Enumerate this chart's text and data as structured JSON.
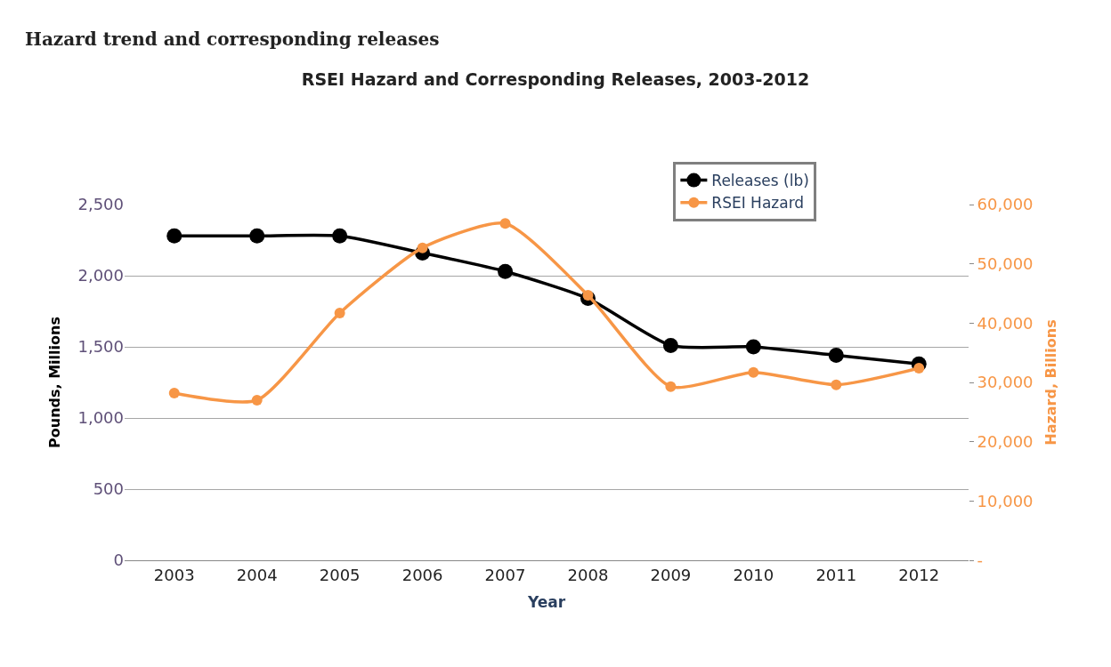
{
  "chart_data": {
    "type": "line",
    "title": "RSEI Hazard and Corresponding Releases, 2003-2012",
    "annotations": [
      "Hazard trend and corresponding releases"
    ],
    "categories": [
      "2003",
      "2004",
      "2005",
      "2006",
      "2007",
      "2008",
      "2009",
      "2010",
      "2011",
      "2012"
    ],
    "xlabel": "Year",
    "ylabel": "Pounds, Millions",
    "y2label": "Hazard, Billions",
    "series": [
      {
        "name": "Releases (lb)",
        "color": "#000000",
        "values": [
          2280,
          2280,
          2280,
          2160,
          2030,
          1840,
          1510,
          1500,
          1440,
          1380
        ]
      },
      {
        "name": "RSEI Hazard",
        "color": "#f79646",
        "axis": "y2",
        "values": [
          28200,
          27000,
          41700,
          52700,
          56800,
          44700,
          29300,
          31700,
          29600,
          32400
        ]
      }
    ],
    "ylim": [
      0,
      2500
    ],
    "yticks": [
      0,
      500,
      {
        "value": 1000,
        "label": "1,000"
      },
      {
        "value": 1500,
        "label": "1,500"
      },
      {
        "value": 2000,
        "label": "2,000"
      },
      {
        "value": 2500,
        "label": "2,500"
      }
    ],
    "y2lim": [
      0,
      60000
    ],
    "y2ticks": [
      {
        "value": 0,
        "label": "-"
      },
      {
        "value": 10000,
        "label": "10,000"
      },
      {
        "value": 20000,
        "label": "20,000"
      },
      {
        "value": 30000,
        "label": "30,000"
      },
      {
        "value": 40000,
        "label": "40,000"
      },
      {
        "value": 50000,
        "label": "50,000"
      },
      {
        "value": 60000,
        "label": "60,000"
      }
    ],
    "grid": "y",
    "legend": "top right",
    "marker": "circle",
    "line_style": "solid"
  }
}
